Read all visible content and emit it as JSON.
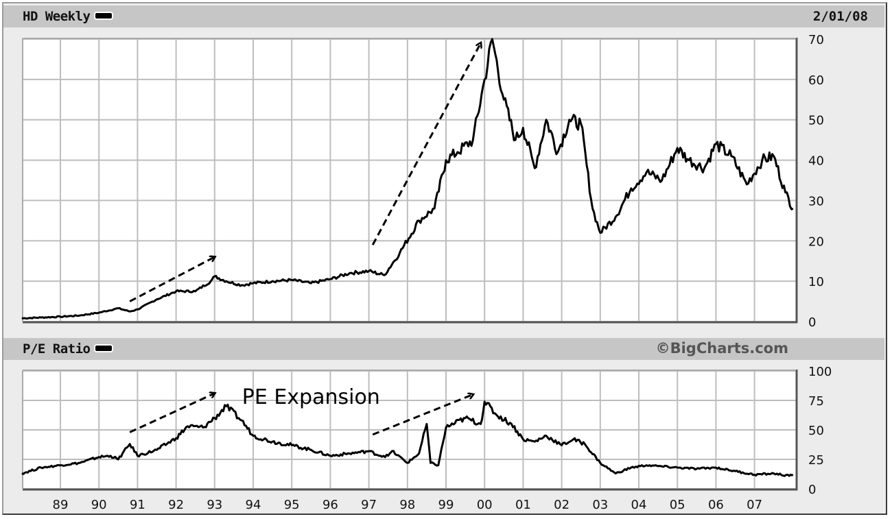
{
  "header": {
    "title": "HD Weekly",
    "date": "2/01/08"
  },
  "lower_header": {
    "title": "P/E Ratio",
    "brand": "©BigCharts.com"
  },
  "colors": {
    "bar_bg": "#c6c6c6",
    "frame_bg": "#ececec",
    "plot_bg": "#ffffff",
    "grid": "#bdbdbd",
    "series": "#000000"
  },
  "annotation": {
    "label": "PE Expansion"
  },
  "chart_data": [
    {
      "type": "line",
      "title": "HD Weekly",
      "subtitle": "2/01/08",
      "xlabel": "",
      "ylabel": "",
      "ylim": [
        0,
        70
      ],
      "yticks": [
        0,
        10,
        20,
        30,
        40,
        50,
        60,
        70
      ],
      "x_tick_labels": [
        "89",
        "90",
        "91",
        "92",
        "93",
        "94",
        "95",
        "96",
        "97",
        "98",
        "99",
        "00",
        "01",
        "02",
        "03",
        "04",
        "05",
        "06",
        "07"
      ],
      "grid": true,
      "legend": [
        "HD Weekly"
      ],
      "series": [
        {
          "name": "HD Weekly (price, $)",
          "x": [
            1988.0,
            1988.5,
            1989.0,
            1989.5,
            1990.0,
            1990.5,
            1990.8,
            1991.0,
            1991.5,
            1992.0,
            1992.5,
            1992.9,
            1993.0,
            1993.3,
            1993.7,
            1994.0,
            1994.5,
            1995.0,
            1995.5,
            1996.0,
            1996.5,
            1997.0,
            1997.4,
            1997.8,
            1998.3,
            1998.7,
            1999.0,
            1999.3,
            1999.7,
            2000.0,
            2000.2,
            2000.5,
            2000.8,
            2001.0,
            2001.3,
            2001.6,
            2001.9,
            2002.2,
            2002.5,
            2002.8,
            2003.0,
            2003.4,
            2003.8,
            2004.2,
            2004.6,
            2005.0,
            2005.3,
            2005.7,
            2006.0,
            2006.4,
            2006.8,
            2007.2,
            2007.5,
            2007.8,
            2008.0
          ],
          "values": [
            0.8,
            1.0,
            1.2,
            1.5,
            2.2,
            3.3,
            2.5,
            3.0,
            5.5,
            7.5,
            7.5,
            10.0,
            11.2,
            10.0,
            9.0,
            9.5,
            10.0,
            10.3,
            9.5,
            10.5,
            12.0,
            12.5,
            11.5,
            17.0,
            25.0,
            28.0,
            40.0,
            42.0,
            45.0,
            60.0,
            70.0,
            55.0,
            45.0,
            48.0,
            38.0,
            50.0,
            42.0,
            50.0,
            49.0,
            28.0,
            22.0,
            26.0,
            33.0,
            37.0,
            35.0,
            43.0,
            40.0,
            38.0,
            44.0,
            41.0,
            34.0,
            40.0,
            41.0,
            32.0,
            28.0
          ]
        }
      ],
      "annotations": [
        {
          "type": "dashed-arrow",
          "from": [
            1990.8,
            5
          ],
          "to": [
            1993.0,
            16
          ]
        },
        {
          "type": "dashed-arrow",
          "from": [
            1997.1,
            19
          ],
          "to": [
            1999.9,
            69
          ]
        }
      ]
    },
    {
      "type": "line",
      "title": "P/E Ratio",
      "xlabel": "",
      "ylabel": "",
      "ylim": [
        0,
        100
      ],
      "yticks": [
        0,
        25,
        50,
        75,
        100
      ],
      "x_tick_labels": [
        "89",
        "90",
        "91",
        "92",
        "93",
        "94",
        "95",
        "96",
        "97",
        "98",
        "99",
        "00",
        "01",
        "02",
        "03",
        "04",
        "05",
        "06",
        "07"
      ],
      "grid": true,
      "legend": [
        "P/E Ratio"
      ],
      "series": [
        {
          "name": "P/E Ratio",
          "x": [
            1988.0,
            1988.5,
            1989.0,
            1989.5,
            1990.0,
            1990.3,
            1990.5,
            1990.8,
            1991.0,
            1991.5,
            1992.0,
            1992.3,
            1992.7,
            1993.0,
            1993.3,
            1993.7,
            1994.0,
            1994.5,
            1995.0,
            1995.5,
            1996.0,
            1996.5,
            1997.0,
            1997.3,
            1997.5,
            1997.6,
            1998.0,
            1998.3,
            1998.5,
            1998.6,
            1998.8,
            1999.0,
            1999.5,
            1999.9,
            2000.0,
            2000.3,
            2000.7,
            2001.0,
            2001.3,
            2001.6,
            2002.0,
            2002.3,
            2002.6,
            2003.0,
            2003.4,
            2003.8,
            2004.2,
            2004.6,
            2005.0,
            2005.5,
            2006.0,
            2006.5,
            2007.0,
            2007.5,
            2007.9,
            2008.0
          ],
          "values": [
            13,
            18,
            20,
            22,
            27,
            28,
            25,
            38,
            28,
            33,
            43,
            53,
            52,
            60,
            70,
            58,
            45,
            40,
            37,
            33,
            28,
            30,
            32,
            28,
            28,
            32,
            22,
            30,
            55,
            22,
            20,
            52,
            60,
            55,
            74,
            63,
            55,
            42,
            40,
            45,
            37,
            42,
            38,
            22,
            13,
            18,
            20,
            19,
            18,
            17,
            18,
            15,
            12,
            13,
            11,
            12
          ]
        }
      ],
      "annotations": [
        {
          "type": "dashed-arrow",
          "from": [
            1990.8,
            48
          ],
          "to": [
            1993.0,
            81
          ]
        },
        {
          "type": "dashed-arrow",
          "from": [
            1997.1,
            46
          ],
          "to": [
            1999.7,
            80
          ]
        },
        {
          "type": "text",
          "label": "PE Expansion",
          "at": [
            1993.8,
            78
          ]
        }
      ]
    }
  ]
}
